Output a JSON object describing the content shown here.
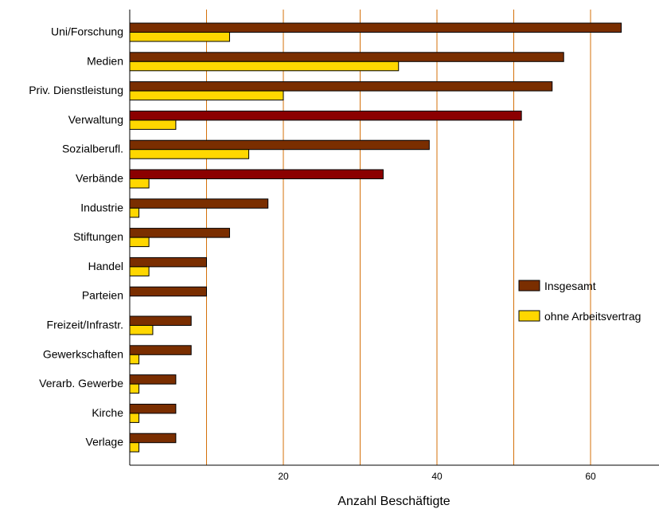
{
  "chart_data": {
    "type": "bar",
    "orientation": "horizontal",
    "xlabel": "Anzahl Beschäftigte",
    "xlim": [
      0,
      70
    ],
    "xticks": [
      20,
      40,
      60
    ],
    "grid": true,
    "legend_position": "right",
    "categories": [
      "Uni/Forschung",
      "Medien",
      "Priv. Dienstleistung",
      "Verwaltung",
      "Sozialberufl.",
      "Verbände",
      "Industrie",
      "Stiftungen",
      "Handel",
      "Parteien",
      "Freizeit/Infrastr.",
      "Gewerkschaften",
      "Verarb. Gewerbe",
      "Kirche",
      "Verlage"
    ],
    "series": [
      {
        "name": "Insgesamt",
        "color": "#7a2e00",
        "values": [
          64,
          56.5,
          55,
          51,
          39,
          33,
          18,
          13,
          10,
          10,
          8,
          8,
          6,
          6,
          6
        ]
      },
      {
        "name": "ohne Arbeitsvertrag",
        "color": "#ffd700",
        "values": [
          13,
          35,
          20,
          6,
          15.5,
          2.5,
          1.2,
          2.5,
          2.5,
          0,
          3,
          1.2,
          1.2,
          1.2,
          1.2
        ]
      }
    ],
    "highlight_color": "#8b0000",
    "highlighted_categories": [
      "Verwaltung",
      "Verbände"
    ],
    "grid_color": "#d4700a"
  }
}
